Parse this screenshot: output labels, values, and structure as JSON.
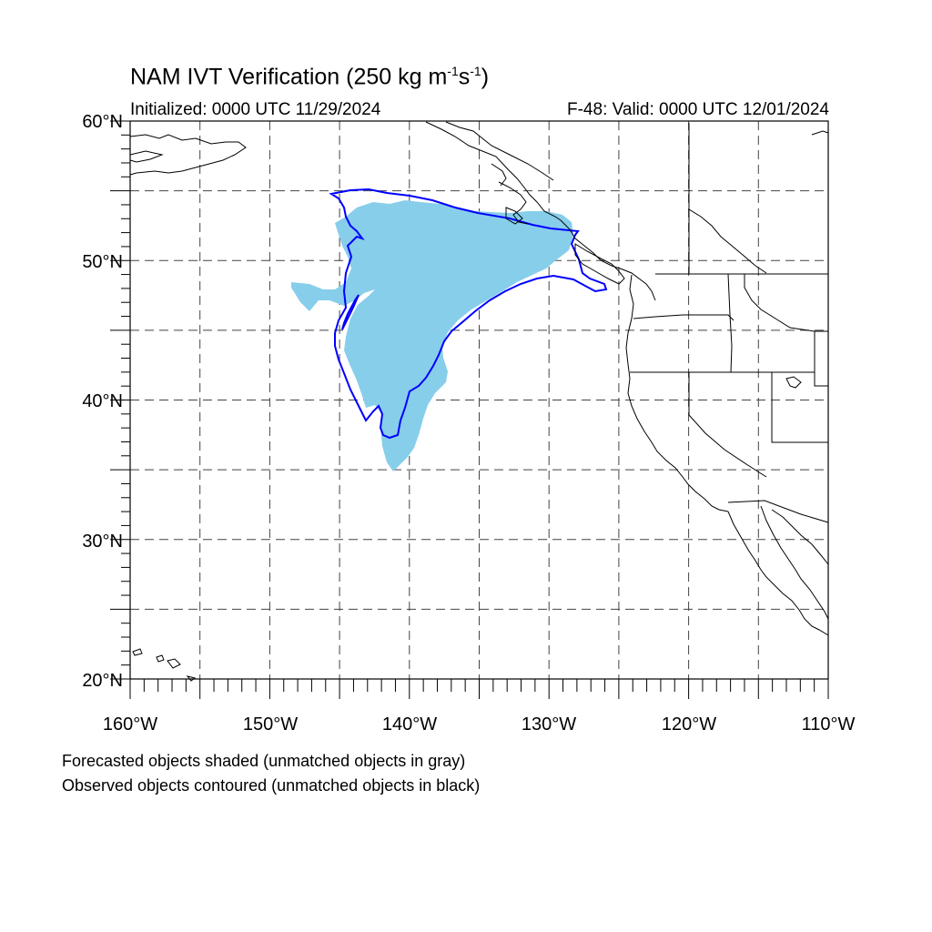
{
  "title": {
    "main": "NAM IVT Verification (250 kg m",
    "exp1": "-1",
    "mid": "s",
    "exp2": "-1",
    "close": ")"
  },
  "initialized": "Initialized: 0000 UTC 11/29/2024",
  "valid": "F-48: Valid: 0000 UTC 12/01/2024",
  "lat_labels": [
    "60°N",
    "50°N",
    "40°N",
    "30°N",
    "20°N"
  ],
  "lon_labels": [
    "160°W",
    "150°W",
    "140°W",
    "130°W",
    "120°W",
    "110°W"
  ],
  "notes": [
    "Forecasted objects shaded (unmatched objects in gray)",
    "Observed objects contoured (unmatched objects in black)"
  ],
  "colors": {
    "forecast_fill": "#87ceeb",
    "observed_contour": "#0000ff",
    "grid": "#444444",
    "coast": "#000000"
  },
  "map": {
    "lon_range": [
      -160,
      -110
    ],
    "lat_range": [
      20,
      60
    ]
  }
}
